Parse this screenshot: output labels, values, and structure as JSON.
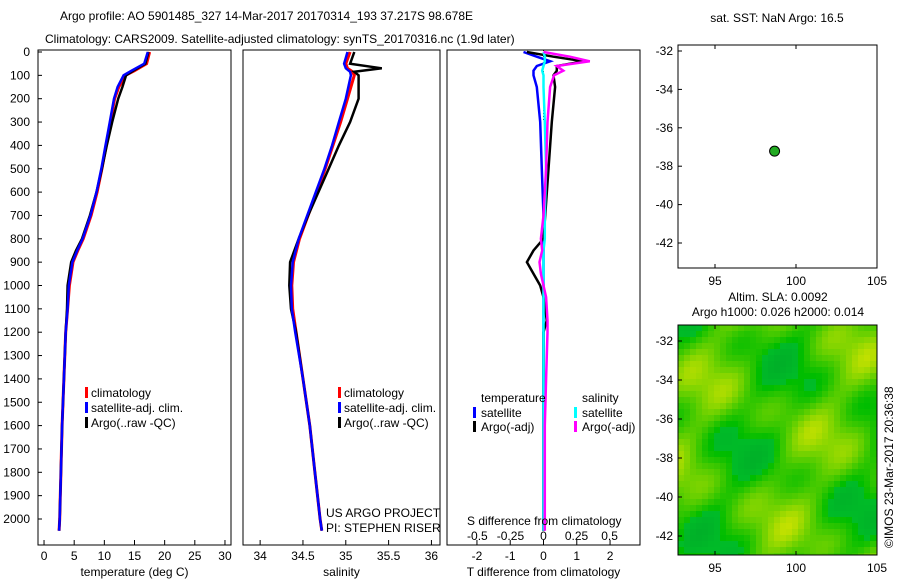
{
  "title": {
    "line1": "Argo profile: AO 5901485_327 14-Mar-2017 20170314_193 37.217S 98.678E",
    "line2": "Climatology: CARS2009. Satellite-adjusted climatology: synTS_20170316.nc (1.9d later)"
  },
  "colors": {
    "climatology": "#ff0000",
    "satellite": "#0000ff",
    "argo": "#000000",
    "sal_satellite": "#00ffff",
    "sal_argo": "#ff00ff",
    "dot": "#22aa22"
  },
  "chart_data": [
    {
      "type": "line",
      "xlabel": "temperature (deg C)",
      "xlim": [
        -1,
        31
      ],
      "xticks": [
        "0",
        "5",
        "10",
        "15",
        "20",
        "25",
        "30"
      ],
      "xtick_values": [
        0,
        5,
        10,
        15,
        20,
        25,
        30
      ],
      "ylim": [
        2050,
        0
      ],
      "yticks": [
        "0",
        "100",
        "200",
        "300",
        "400",
        "500",
        "600",
        "700",
        "800",
        "900",
        "1000",
        "1100",
        "1200",
        "1300",
        "1400",
        "1500",
        "1600",
        "1700",
        "1800",
        "1900",
        "2000"
      ],
      "legend": [
        "climatology",
        "satellite-adj. clim.",
        "Argo(..raw -QC)"
      ],
      "depth": [
        0,
        50,
        80,
        100,
        150,
        200,
        300,
        400,
        500,
        600,
        700,
        800,
        850,
        900,
        1000,
        1100,
        1200,
        1400,
        1600,
        1800,
        2000,
        2050
      ],
      "series": [
        {
          "name": "climatology",
          "values": [
            17.5,
            17,
            15,
            13.5,
            12.4,
            11.7,
            11,
            10.3,
            9.6,
            8.8,
            7.8,
            6.5,
            5.6,
            4.8,
            4.2,
            3.9,
            3.6,
            3.3,
            3.0,
            2.8,
            2.6,
            2.5
          ]
        },
        {
          "name": "Argo",
          "values": [
            17.3,
            16.8,
            14.8,
            13.6,
            13,
            12.3,
            11.3,
            10.4,
            9.6,
            8.7,
            7.6,
            6.3,
            5.3,
            4.5,
            3.9,
            3.8,
            3.6,
            3.3,
            3.0,
            2.8,
            2.6,
            2.5
          ]
        },
        {
          "name": "satellite-adj. clim.",
          "values": [
            17.2,
            16.6,
            14.5,
            13.2,
            12.2,
            11.6,
            10.9,
            10.2,
            9.5,
            8.7,
            7.7,
            6.4,
            5.5,
            4.7,
            4.1,
            3.9,
            3.6,
            3.3,
            3.0,
            2.8,
            2.6,
            2.5
          ]
        }
      ]
    },
    {
      "type": "line",
      "xlabel": "salinity",
      "xlim": [
        33.8,
        36.1
      ],
      "xticks": [
        "34",
        "34.5",
        "35",
        "35.5",
        "36"
      ],
      "xtick_values": [
        34,
        34.5,
        35,
        35.5,
        36
      ],
      "legend": [
        "climatology",
        "satellite-adj. clim.",
        "Argo(..raw -QC)"
      ],
      "annotation": [
        "US ARGO PROJECT",
        "PI: STEPHEN RISER"
      ],
      "depth": [
        0,
        50,
        70,
        85,
        100,
        200,
        300,
        400,
        500,
        600,
        700,
        800,
        900,
        1000,
        1100,
        1200,
        1400,
        1600,
        1800,
        2000,
        2050
      ],
      "series": [
        {
          "name": "climatology",
          "values": [
            35.05,
            35.0,
            35.02,
            35.08,
            35.1,
            35.02,
            34.94,
            34.85,
            34.76,
            34.66,
            34.56,
            34.46,
            34.39,
            34.37,
            34.38,
            34.42,
            34.5,
            34.58,
            34.64,
            34.7,
            34.72
          ]
        },
        {
          "name": "Argo",
          "values": [
            35.1,
            35.05,
            35.42,
            35.1,
            35.15,
            35.15,
            35.05,
            34.92,
            34.8,
            34.68,
            34.56,
            34.45,
            34.35,
            34.34,
            34.36,
            34.42,
            34.5,
            34.58,
            34.64,
            34.7,
            34.72
          ]
        },
        {
          "name": "satellite-adj. clim.",
          "values": [
            35.02,
            34.98,
            35.0,
            35.05,
            35.06,
            35.0,
            34.92,
            34.84,
            34.75,
            34.65,
            34.55,
            34.45,
            34.38,
            34.36,
            34.37,
            34.41,
            34.5,
            34.58,
            34.64,
            34.7,
            34.72
          ]
        }
      ]
    },
    {
      "type": "line",
      "xlabel": "T difference from climatology",
      "xlim": [
        -2.9,
        2.9
      ],
      "xticks": [
        "-2",
        "-1",
        "0",
        "1",
        "2"
      ],
      "xtick_values": [
        -2,
        -1,
        0,
        1,
        2
      ],
      "x2label": "S difference from climatology",
      "x2ticks": [
        "-0.5",
        "-0.25",
        "0",
        "0.25",
        "0.5"
      ],
      "x2tick_values": [
        -0.5,
        -0.25,
        0,
        0.25,
        0.5
      ],
      "legend_titles": [
        "temperature",
        "salinity"
      ],
      "legend": [
        "satellite",
        "Argo(-adj)",
        "satellite",
        "Argo(-adj)"
      ],
      "depth": [
        0,
        20,
        40,
        60,
        80,
        100,
        150,
        300,
        500,
        700,
        800,
        850,
        900,
        950,
        1000,
        1050,
        1150,
        1200,
        1400,
        1600,
        1800,
        2000,
        2050
      ],
      "series": [
        {
          "name": "T satellite",
          "values": [
            -0.6,
            -0.2,
            0.2,
            -0.2,
            -0.3,
            -0.3,
            -0.2,
            -0.1,
            -0.05,
            0,
            0,
            0,
            0,
            0,
            0,
            0,
            0,
            0,
            0,
            0,
            0,
            0,
            0
          ]
        },
        {
          "name": "T Argo(-adj)",
          "values": [
            -0.5,
            0.3,
            1.2,
            0.4,
            0.4,
            0.3,
            0.35,
            0.25,
            0.15,
            0.05,
            0,
            -0.3,
            -0.5,
            -0.3,
            -0.1,
            0,
            0.1,
            0,
            0,
            0,
            0,
            0,
            0
          ]
        },
        {
          "name": "S satellite",
          "values": [
            0,
            0.01,
            0.01,
            0,
            -0.01,
            0,
            0,
            0.01,
            0.02,
            0.01,
            0.01,
            0,
            0,
            0,
            0,
            0,
            0,
            0,
            0,
            0,
            0,
            0,
            0
          ]
        },
        {
          "name": "S Argo(-adj)",
          "values": [
            0,
            0.2,
            0.35,
            0.1,
            0.15,
            0.08,
            0.05,
            0.03,
            0.02,
            0.0,
            -0.02,
            -0.01,
            -0.03,
            -0.02,
            0,
            0.02,
            0.03,
            0.03,
            0.02,
            0.01,
            0.01,
            0.01,
            0.01
          ]
        }
      ]
    },
    {
      "type": "scatter",
      "title": "sat. SST: NaN Argo: 16.5",
      "xlim": [
        92.3,
        105.2
      ],
      "ylim": [
        -43.1,
        -31.4
      ],
      "xticks": [
        "95",
        "100",
        "105"
      ],
      "yticks": [
        "-32",
        "-34",
        "-36",
        "-38",
        "-40",
        "-42"
      ],
      "points": [
        {
          "x": 98.678,
          "y": -37.217
        }
      ]
    },
    {
      "type": "heatmap",
      "title1": "Altim. SLA: 0.0092",
      "title2": "Argo h1000: 0.026 h2000: 0.014",
      "xlim": [
        92.3,
        105
      ],
      "ylim": [
        -43,
        -31.5
      ],
      "xticks": [
        "95",
        "100",
        "105"
      ],
      "yticks": [
        "-32",
        "-34",
        "-36",
        "-38",
        "-40",
        "-42"
      ]
    }
  ],
  "credit": "©IMOS 23-Mar-2017 20:36:38"
}
